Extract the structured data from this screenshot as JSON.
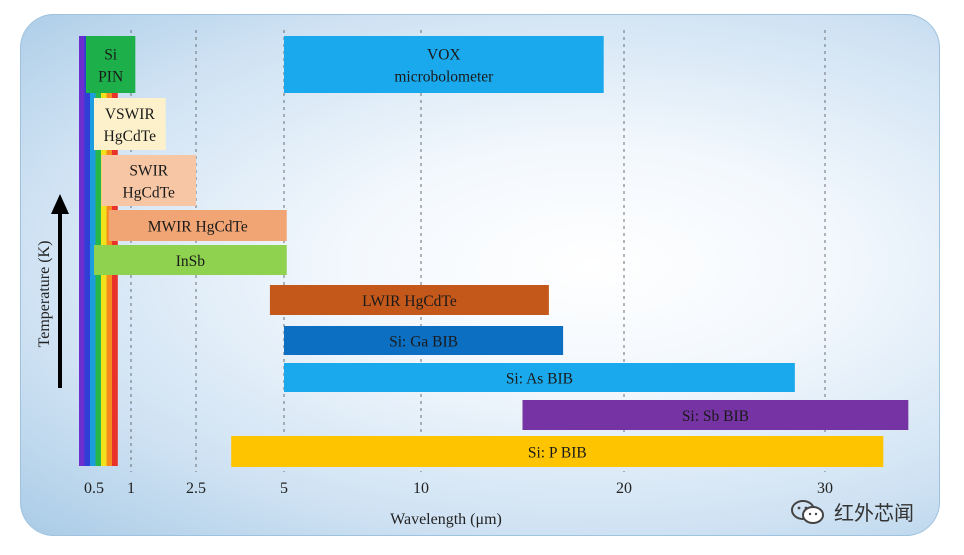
{
  "chart_data": {
    "type": "range-bar",
    "xlabel": "Wavelength (μm)",
    "ylabel": "Temperature (K)",
    "x_ticks": [
      "0.5",
      "1",
      "2.5",
      "5",
      "10",
      "20",
      "30"
    ],
    "x_tick_values": [
      0.5,
      1,
      2.5,
      5,
      10,
      20,
      30
    ],
    "gridlines": [
      1,
      2.5,
      5,
      10,
      20,
      30
    ],
    "detectors": [
      {
        "label": "Si PIN",
        "lines": [
          "Si",
          "PIN"
        ],
        "x_start": 0.4,
        "x_end": 1.1,
        "color": "#1db04a"
      },
      {
        "label": "VOX microbolometer",
        "lines": [
          "VOX",
          "microbolometer"
        ],
        "x_start": 5,
        "x_end": 19,
        "color": "#1aa9ec"
      },
      {
        "label": "VSWIR HgCdTe",
        "lines": [
          "VSWIR",
          "HgCdTe"
        ],
        "x_start": 0.5,
        "x_end": 1.8,
        "color": "#fdf1cb"
      },
      {
        "label": "SWIR HgCdTe",
        "lines": [
          "SWIR",
          "HgCdTe"
        ],
        "x_start": 0.6,
        "x_end": 2.5,
        "color": "#f7c6a4"
      },
      {
        "label": "MWIR HgCdTe",
        "lines": [
          "MWIR HgCdTe"
        ],
        "x_start": 0.7,
        "x_end": 5.1,
        "color": "#f2a574"
      },
      {
        "label": "InSb",
        "lines": [
          "InSb"
        ],
        "x_start": 0.5,
        "x_end": 5.1,
        "color": "#8ed24f"
      },
      {
        "label": "LWIR HgCdTe",
        "lines": [
          "LWIR HgCdTe"
        ],
        "x_start": 4.6,
        "x_end": 16.3,
        "color": "#c4581a"
      },
      {
        "label": "Si: Ga BIB",
        "lines": [
          "Si: Ga BIB"
        ],
        "x_start": 5,
        "x_end": 17,
        "color": "#0d6fc2"
      },
      {
        "label": "Si: As BIB",
        "lines": [
          "Si: As BIB"
        ],
        "x_start": 5,
        "x_end": 28.5,
        "color": "#1aa9ec"
      },
      {
        "label": "Si: Sb BIB",
        "lines": [
          "Si: Sb BIB"
        ],
        "x_start": 15,
        "x_end": 35,
        "color": "#7533a3"
      },
      {
        "label": "Si: P BIB",
        "lines": [
          "Si: P BIB"
        ],
        "x_start": 3.5,
        "x_end": 33.5,
        "color": "#fec400"
      }
    ],
    "spectrum_colors": [
      "#6b2ecf",
      "#2f3fd6",
      "#1c9de0",
      "#27b64a",
      "#f2e21c",
      "#f78a1f",
      "#e8322a"
    ]
  },
  "watermark": {
    "text": "红外芯闻",
    "icon": "wechat-icon",
    "color": "#333333"
  }
}
